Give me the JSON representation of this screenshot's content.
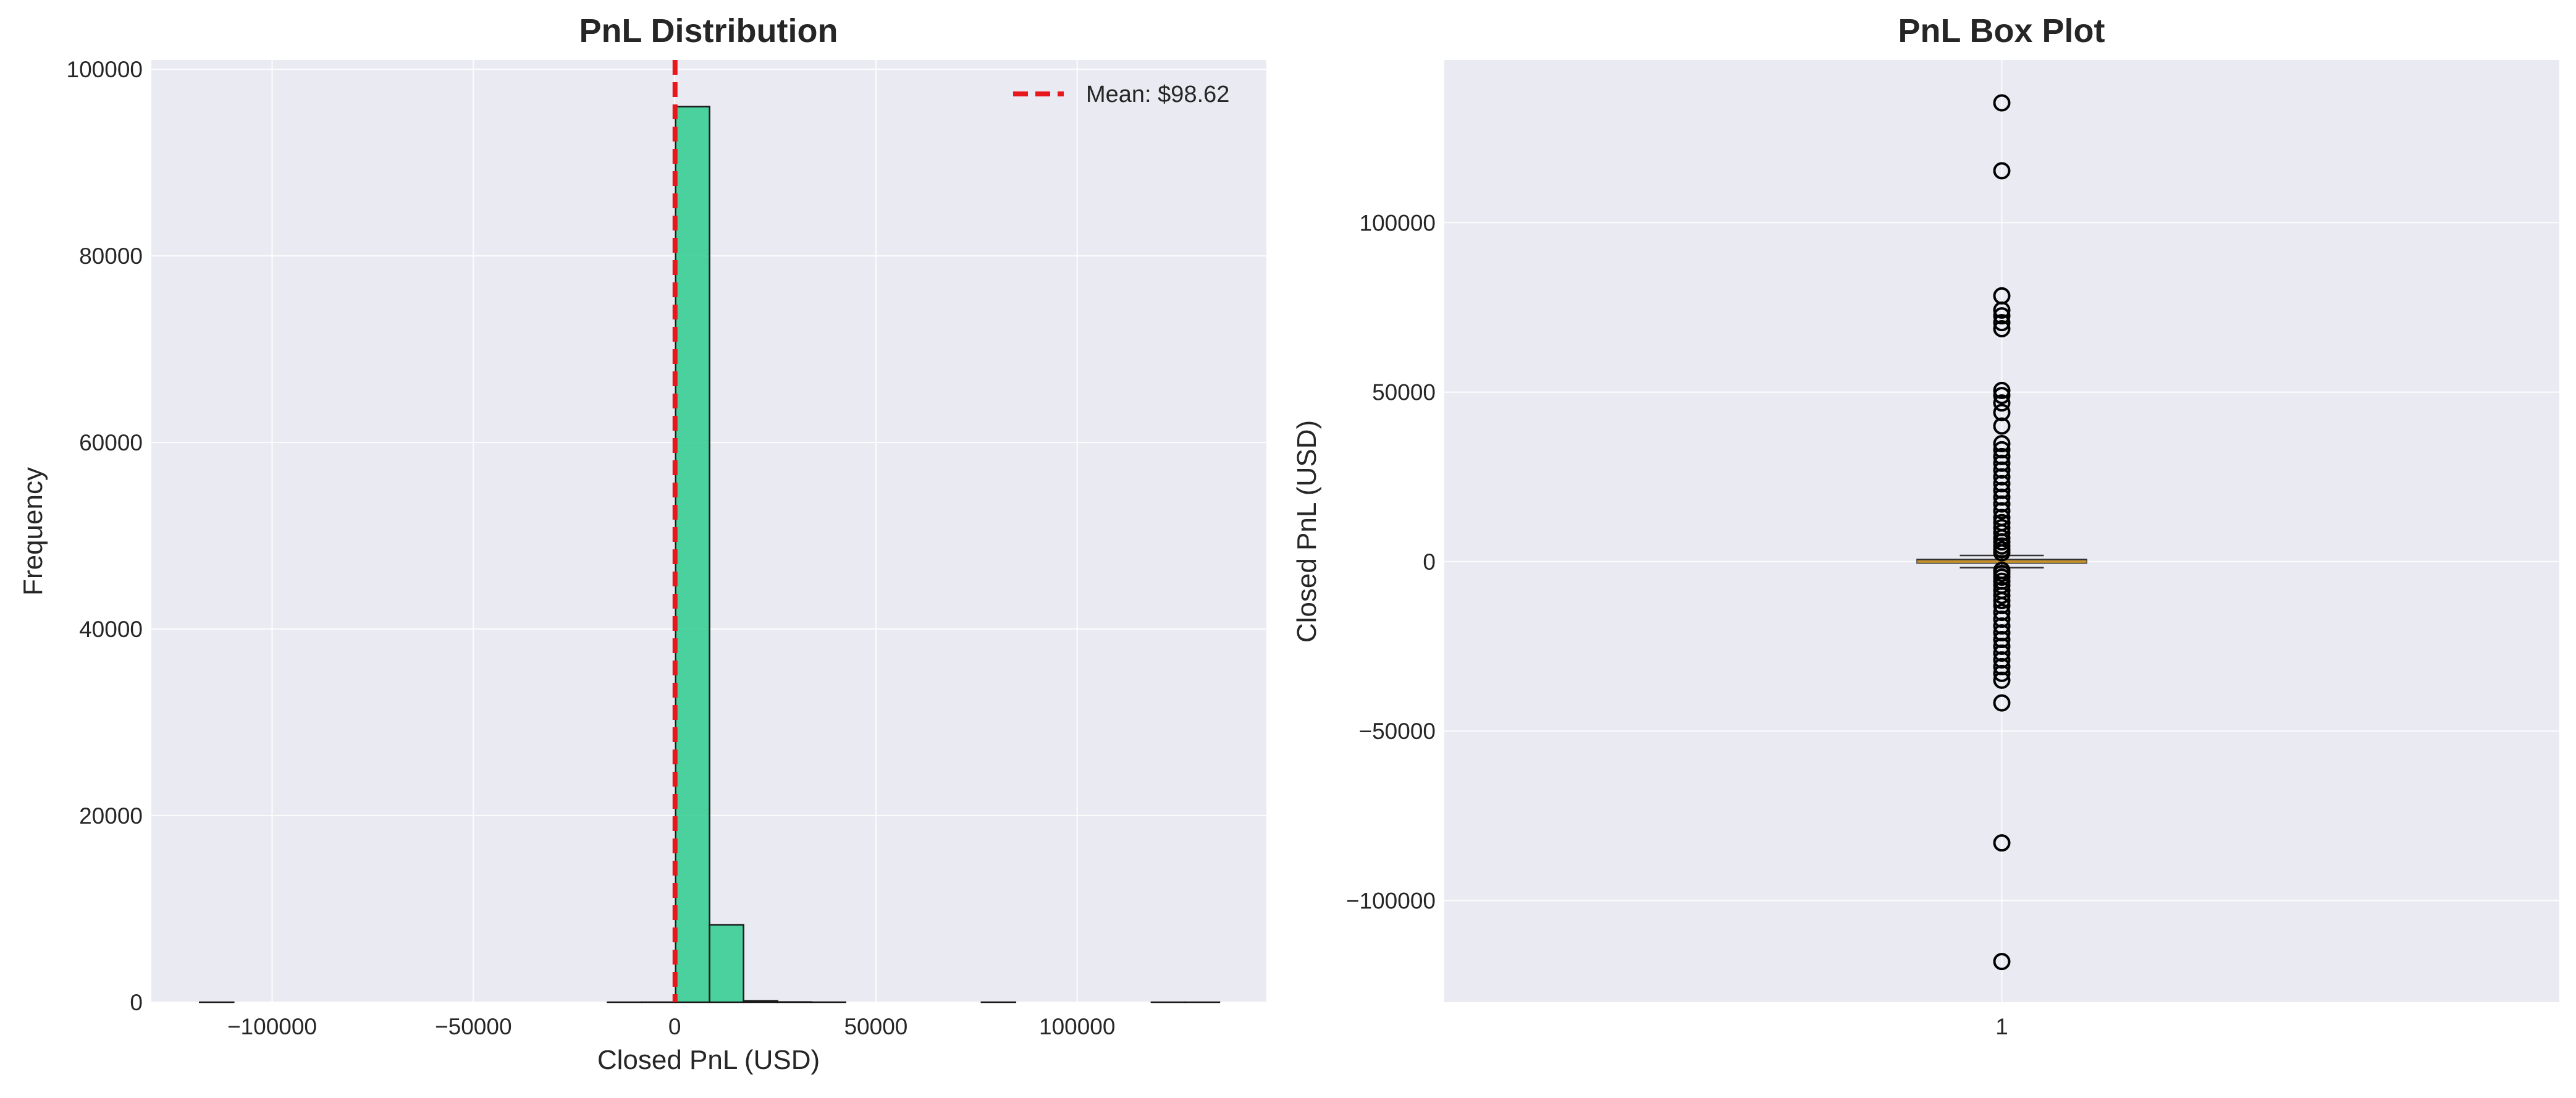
{
  "colors": {
    "panel_bg": "#eaeaf2",
    "grid": "#ffffff",
    "hist_fill": "#2ecc8f",
    "hist_edge": "#1a1a1a",
    "mean_line": "#e8171b",
    "median_line": "#c7922a",
    "text": "#262626"
  },
  "chart_data": [
    {
      "type": "bar",
      "subtype": "histogram",
      "title": "PnL Distribution",
      "xlabel": "Closed PnL (USD)",
      "ylabel": "Frequency",
      "xlim": [
        -130000,
        147000
      ],
      "ylim": [
        0,
        101000
      ],
      "xticks": [
        -100000,
        -50000,
        0,
        50000,
        100000
      ],
      "xtick_labels": [
        "−100000",
        "−50000",
        "0",
        "50000",
        "100000"
      ],
      "yticks": [
        0,
        20000,
        40000,
        60000,
        80000,
        100000
      ],
      "ytick_labels": [
        "0",
        "20000",
        "40000",
        "60000",
        "80000",
        "100000"
      ],
      "bin_range": [
        -117990,
        135330
      ],
      "bins": 30,
      "counts": [
        1,
        0,
        0,
        0,
        0,
        0,
        0,
        0,
        0,
        0,
        0,
        0,
        2,
        8,
        96000,
        8300,
        150,
        25,
        6,
        0,
        0,
        0,
        0,
        3,
        0,
        0,
        0,
        0,
        1,
        1
      ],
      "mean_line": {
        "x": 98.62,
        "label": "Mean: $98.62"
      },
      "legend": "top-right",
      "grid": true
    },
    {
      "type": "box",
      "title": "PnL Box Plot",
      "xlabel": "",
      "ylabel": "Closed PnL (USD)",
      "ylim": [
        -130000,
        148000
      ],
      "yticks": [
        -100000,
        -50000,
        0,
        50000,
        100000
      ],
      "ytick_labels": [
        "−100000",
        "−50000",
        "0",
        "50000",
        "100000"
      ],
      "xticks": [
        1
      ],
      "xtick_labels": [
        "1"
      ],
      "box": {
        "q1": -400,
        "median": 0,
        "q3": 600,
        "whisker_low": -1800,
        "whisker_high": 1800
      },
      "outliers": [
        135330,
        115300,
        78400,
        74200,
        72500,
        70500,
        68700,
        50500,
        49000,
        46800,
        44000,
        40000,
        34800,
        33000,
        31000,
        29000,
        27000,
        25000,
        23000,
        21000,
        19000,
        17000,
        15000,
        13000,
        11500,
        10000,
        8500,
        7000,
        5800,
        4600,
        3500,
        2600,
        -2600,
        -3500,
        -4600,
        -5800,
        -7000,
        -8500,
        -10000,
        -11500,
        -13000,
        -15000,
        -17000,
        -19000,
        -21000,
        -23000,
        -25000,
        -27000,
        -29000,
        -31000,
        -33000,
        -35000,
        -41700,
        -83000,
        -117990
      ],
      "grid": true
    }
  ]
}
